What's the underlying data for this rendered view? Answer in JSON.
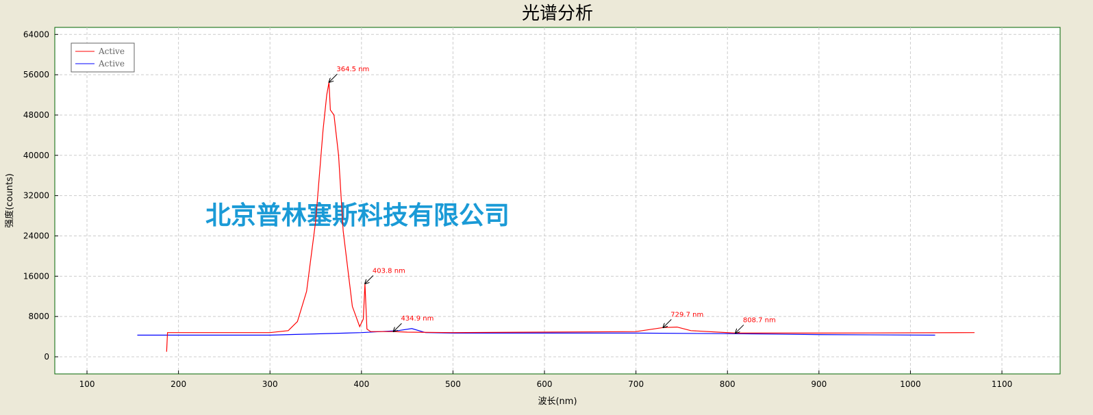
{
  "chart_data": {
    "type": "line",
    "title": "光谱分析",
    "x_label": "波长(nm)",
    "y_label": "强度(counts)",
    "watermark": "北京普林塞斯科技有限公司",
    "xlim": [
      64.8,
      1163.6
    ],
    "ylim": [
      -3400,
      65400
    ],
    "xticks": [
      100,
      200,
      300,
      400,
      500,
      600,
      700,
      800,
      900,
      1000,
      1100
    ],
    "yticks": [
      0,
      8000,
      16000,
      24000,
      32000,
      40000,
      48000,
      56000,
      64000
    ],
    "grid": true,
    "legend": "top-left",
    "series": [
      {
        "name": "Active",
        "color": "#ff0000",
        "x": [
          187,
          188,
          300,
          320,
          330,
          340,
          350,
          358,
          362,
          364.5,
          366,
          370,
          375,
          380,
          390,
          398,
          402,
          403.8,
          406,
          410,
          434.9,
          450,
          500,
          700,
          729.7,
          745,
          760,
          808.7,
          900,
          1070
        ],
        "values": [
          1000,
          4800,
          4800,
          5200,
          7000,
          13000,
          27000,
          45000,
          52000,
          54500,
          49000,
          48000,
          40000,
          25000,
          10000,
          6000,
          7500,
          14500,
          5500,
          5000,
          5000,
          4900,
          4800,
          5000,
          5800,
          5900,
          5200,
          4700,
          4700,
          4800
        ]
      },
      {
        "name": "Active",
        "color": "#0000ff",
        "x": [
          155,
          300,
          400,
          440,
          455,
          470,
          500,
          700,
          800,
          900,
          1027
        ],
        "values": [
          4300,
          4300,
          4800,
          5200,
          5600,
          4800,
          4700,
          4700,
          4600,
          4400,
          4300
        ]
      }
    ],
    "annotations": [
      {
        "text": "364.5 nm",
        "x": 364.5,
        "y": 54500
      },
      {
        "text": "403.8 nm",
        "x": 403.8,
        "y": 14500
      },
      {
        "text": "434.9 nm",
        "x": 434.9,
        "y": 5000
      },
      {
        "text": "729.7 nm",
        "x": 729.7,
        "y": 5800
      },
      {
        "text": "808.7 nm",
        "x": 808.7,
        "y": 4700
      }
    ]
  }
}
